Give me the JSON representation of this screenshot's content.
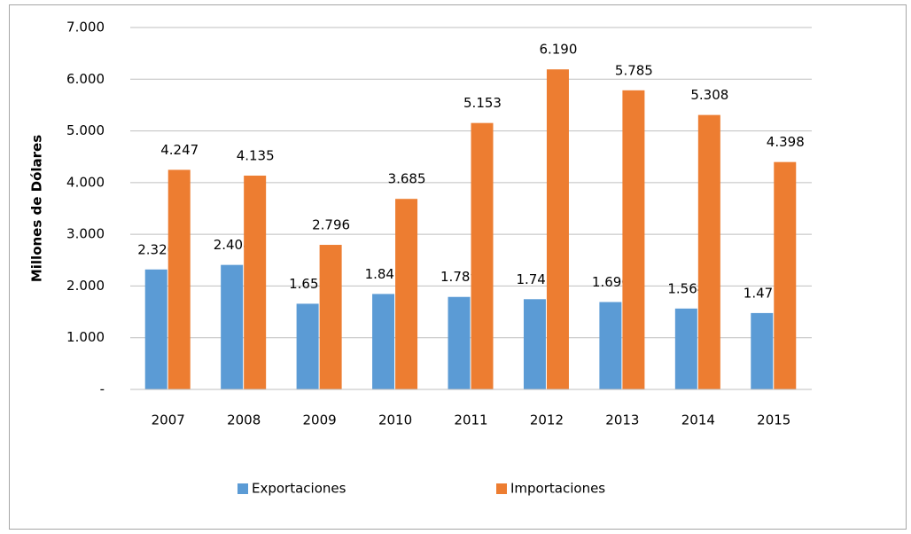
{
  "chart_data": {
    "type": "bar",
    "y_label": "Millones de Dólares",
    "categories": [
      "2007",
      "2008",
      "2009",
      "2010",
      "2011",
      "2012",
      "2013",
      "2014",
      "2015"
    ],
    "series": [
      {
        "name": "Exportaciones",
        "color": "#5b9bd5",
        "values": [
          2320,
          2408,
          1657,
          1846,
          1789,
          1745,
          1690,
          1564,
          1477
        ],
        "value_labels": [
          "2.320",
          "2.408",
          "1.657",
          "1.846",
          "1.789",
          "1.745",
          "1.690",
          "1.564",
          "1.477"
        ]
      },
      {
        "name": "Importaciones",
        "color": "#ed7d31",
        "values": [
          4247,
          4135,
          2796,
          3685,
          5153,
          6190,
          5785,
          5308,
          4398
        ],
        "value_labels": [
          "4.247",
          "4.135",
          "2.796",
          "3.685",
          "5.153",
          "6.190",
          "5.785",
          "5.308",
          "4.398"
        ]
      }
    ],
    "ylim": [
      0,
      7000
    ],
    "yticks": [
      {
        "value": 0,
        "label": "-"
      },
      {
        "value": 1000,
        "label": "1.000"
      },
      {
        "value": 2000,
        "label": "2.000"
      },
      {
        "value": 3000,
        "label": "3.000"
      },
      {
        "value": 4000,
        "label": "4.000"
      },
      {
        "value": 5000,
        "label": "5.000"
      },
      {
        "value": 6000,
        "label": "6.000"
      },
      {
        "value": 7000,
        "label": "7.000"
      }
    ],
    "grid": true
  }
}
